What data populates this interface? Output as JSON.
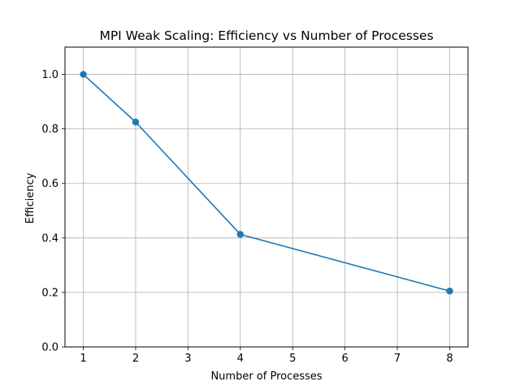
{
  "chart_data": {
    "type": "line",
    "title": "MPI Weak Scaling: Efficiency vs Number of Processes",
    "xlabel": "Number of Processes",
    "ylabel": "Efficiency",
    "xlim": [
      0.65,
      8.35
    ],
    "ylim": [
      0.0,
      1.1
    ],
    "xticks": [
      1,
      2,
      3,
      4,
      5,
      6,
      7,
      8
    ],
    "yticks": [
      0.0,
      0.2,
      0.4,
      0.6,
      0.8,
      1.0
    ],
    "ytick_labels": [
      "0.0",
      "0.2",
      "0.4",
      "0.6",
      "0.8",
      "1.0"
    ],
    "grid": true,
    "series": [
      {
        "x": [
          1,
          2,
          4,
          8
        ],
        "y": [
          1.0,
          0.825,
          0.413,
          0.205
        ],
        "color": "#1f77b4",
        "marker": "circle"
      }
    ]
  }
}
